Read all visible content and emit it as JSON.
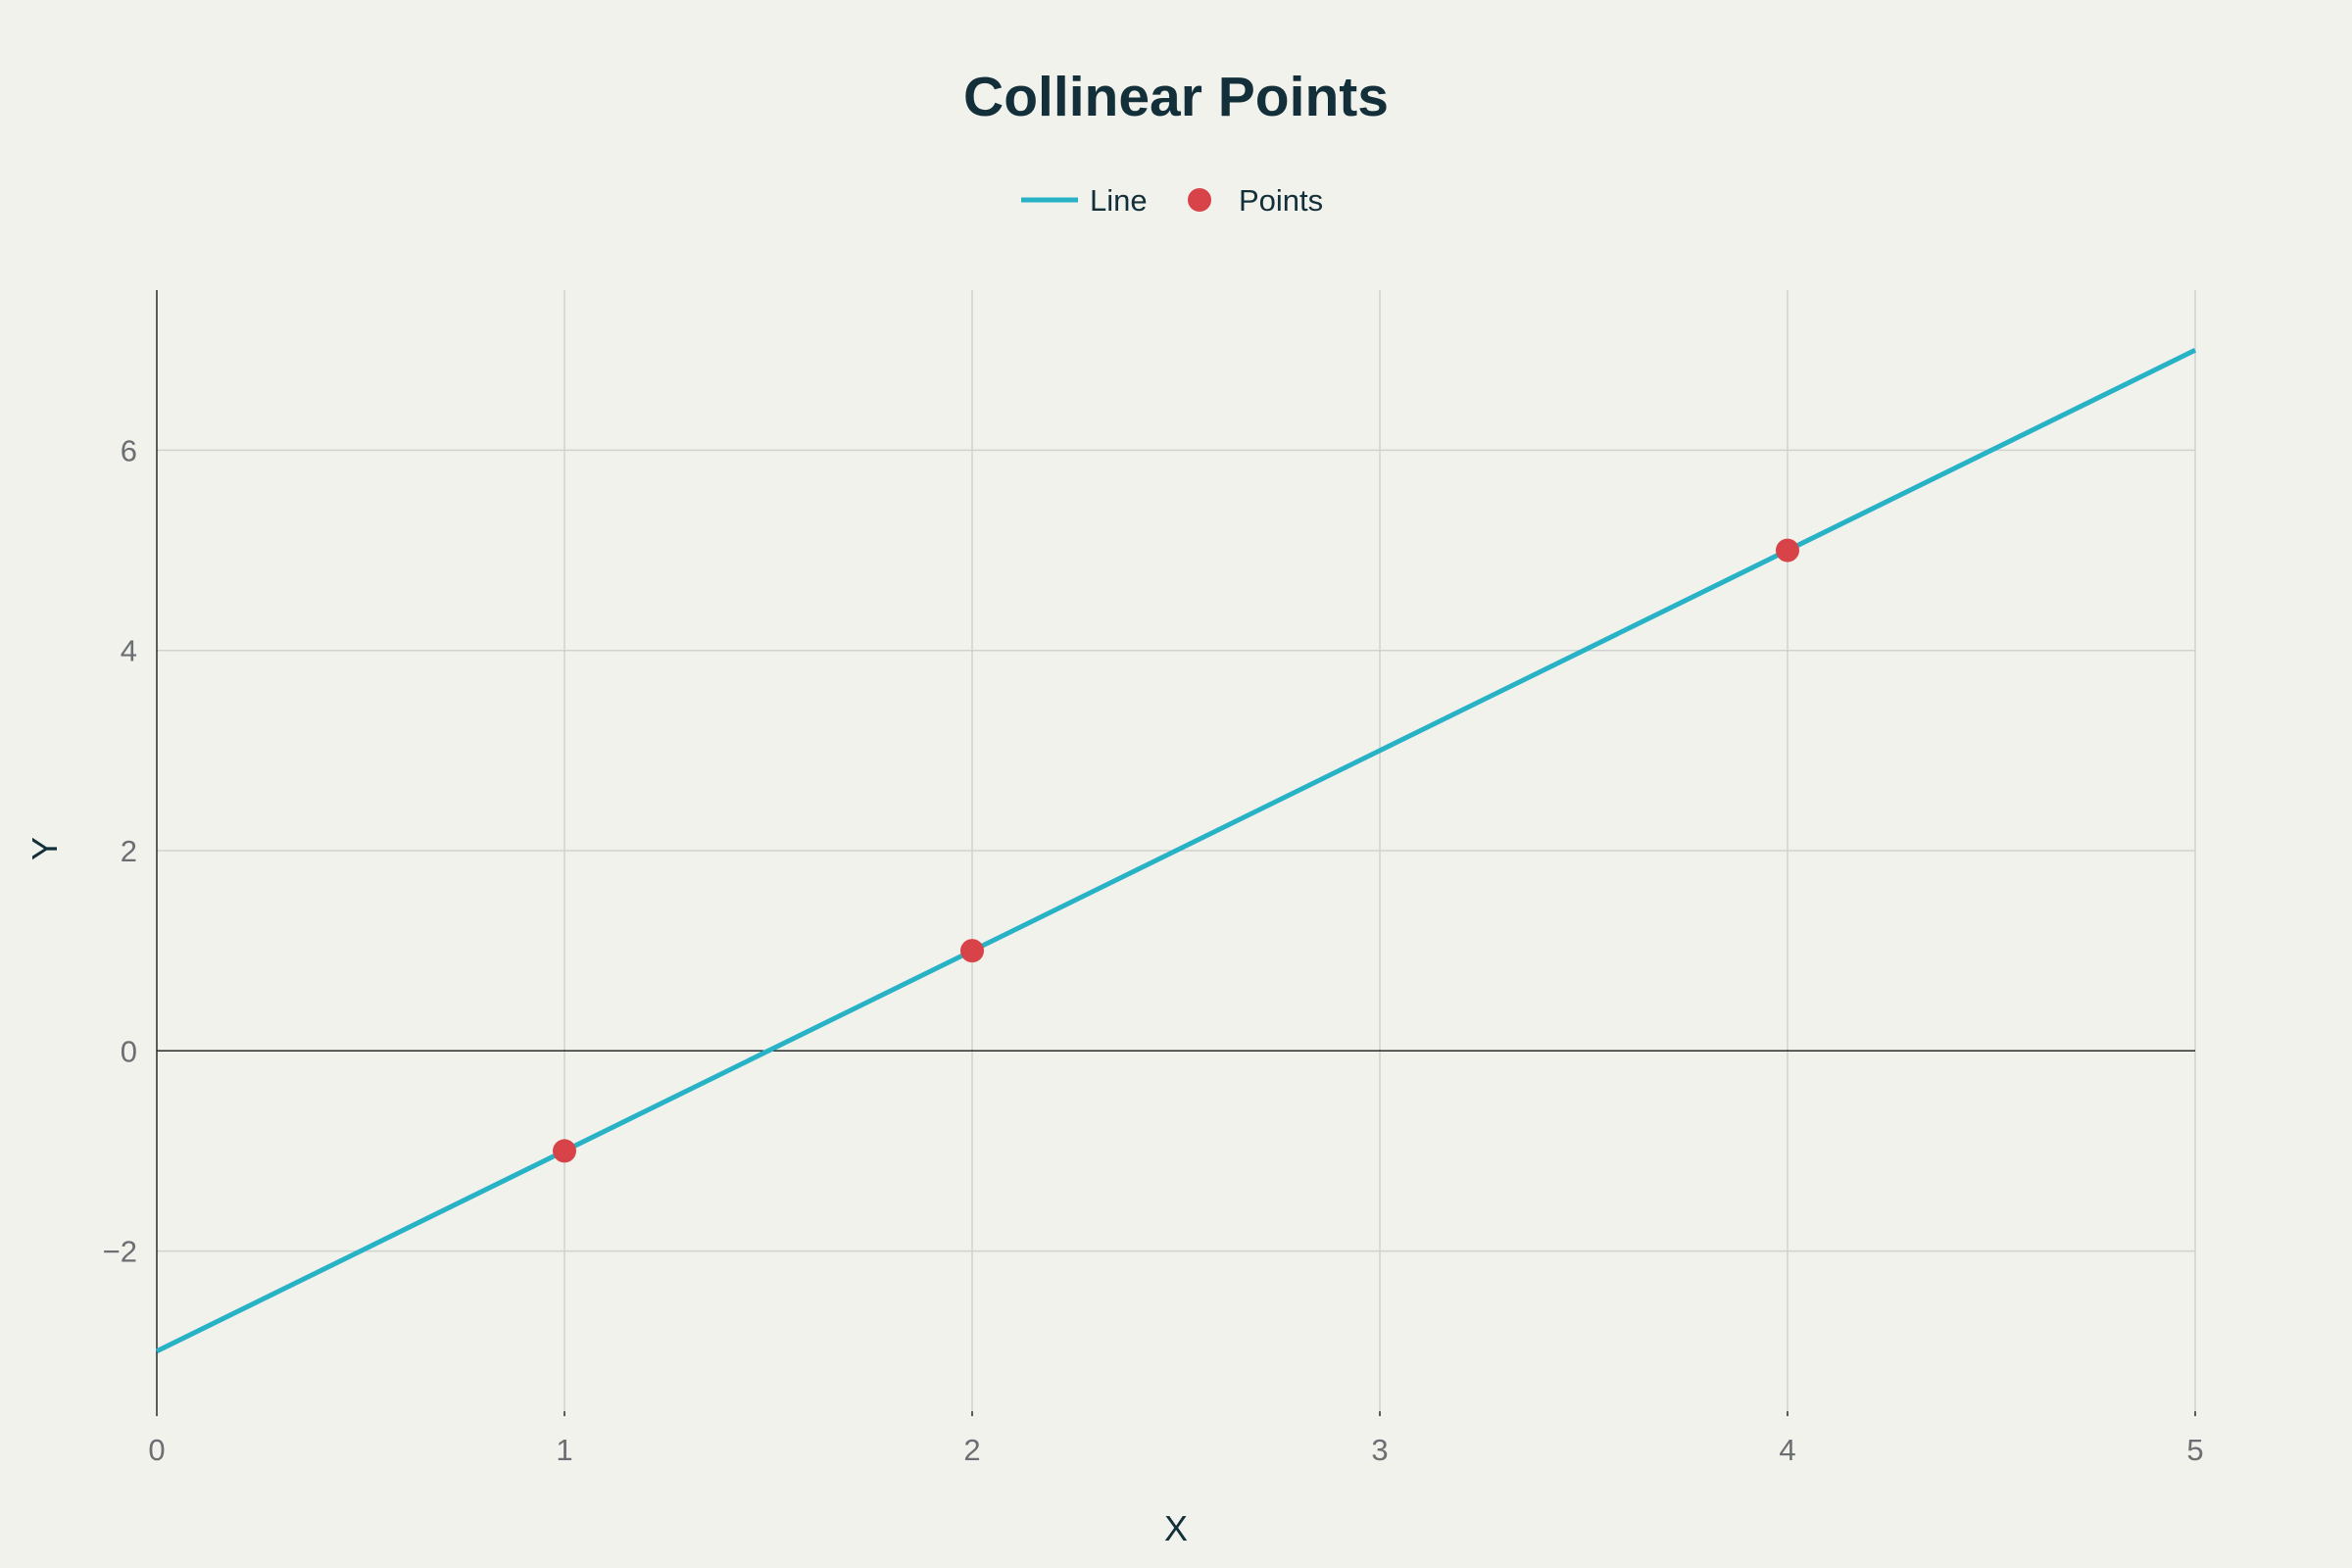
{
  "chart_data": {
    "type": "line",
    "title": "Collinear Points",
    "xlabel": "X",
    "ylabel": "Y",
    "xlim": [
      0,
      5
    ],
    "ylim": [
      -3.6,
      7.6
    ],
    "x_ticks": [
      0,
      1,
      2,
      3,
      4,
      5
    ],
    "y_ticks": [
      -2,
      0,
      2,
      4,
      6
    ],
    "grid": true,
    "legend_position": "top-center",
    "series": [
      {
        "name": "Line",
        "mode": "line",
        "color": "#27b2c6",
        "x": [
          0,
          5
        ],
        "y": [
          -3,
          7
        ]
      },
      {
        "name": "Points",
        "mode": "markers",
        "color": "#d8434a",
        "x": [
          1,
          2,
          4
        ],
        "y": [
          -1,
          1,
          5
        ]
      }
    ]
  }
}
